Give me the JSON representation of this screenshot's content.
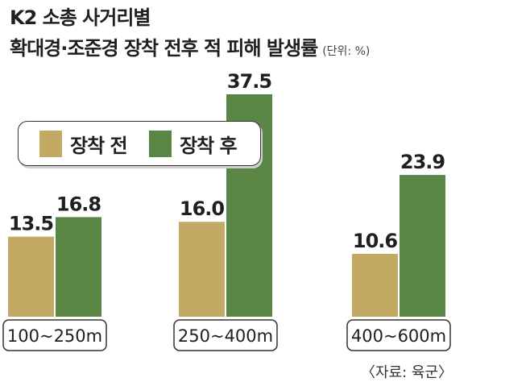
{
  "title_line1": "K2 소총 사거리별",
  "title_line2": "확대경·조준경 장착 전후 적 피해 발생률",
  "unit_note": "(단위: %)",
  "source": "〈자료: 육군〉",
  "colors": {
    "before": "#c2a964",
    "after": "#5a8645"
  },
  "chart_data": {
    "type": "bar",
    "categories": [
      "100~250m",
      "250~400m",
      "400~600m"
    ],
    "series": [
      {
        "name": "장착 전",
        "values": [
          13.5,
          16.0,
          10.6
        ]
      },
      {
        "name": "장착 후",
        "values": [
          16.8,
          37.5,
          23.9
        ]
      }
    ],
    "value_labels": [
      [
        "13.5",
        "16.0",
        "10.6"
      ],
      [
        "16.8",
        "37.5",
        "23.9"
      ]
    ],
    "ylim": [
      0,
      37.5
    ],
    "legend_position": "top-left",
    "grid": false
  }
}
